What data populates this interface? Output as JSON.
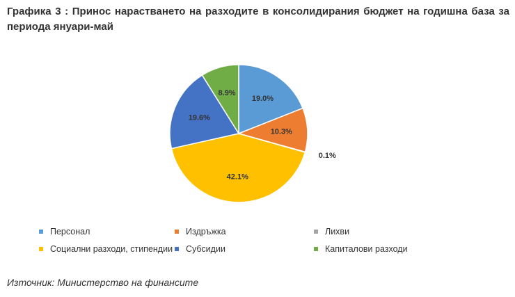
{
  "title": "Графика 3 : Принос нарастването на разходите в консолидирания бюджет на годишна база за периода януари-май",
  "source": "Източник: Министерство на финансите",
  "chart_data": {
    "type": "pie",
    "slices": [
      {
        "name": "Персонал",
        "value": 19.0,
        "label": "19.0%",
        "color": "#5b9bd5"
      },
      {
        "name": "Издръжка",
        "value": 10.3,
        "label": "10.3%",
        "color": "#ed7d31"
      },
      {
        "name": "Лихви",
        "value": 0.1,
        "label": "0.1%",
        "color": "#a5a5a5"
      },
      {
        "name": "Социални разходи, стипендии",
        "value": 42.1,
        "label": "42.1%",
        "color": "#ffc000"
      },
      {
        "name": "Субсидии",
        "value": 19.6,
        "label": "19.6%",
        "color": "#4472c4"
      },
      {
        "name": "Капиталови разходи",
        "value": 8.9,
        "label": "8.9%",
        "color": "#70ad47"
      }
    ],
    "legend_position": "bottom",
    "start": "12 o'clock, clockwise"
  }
}
